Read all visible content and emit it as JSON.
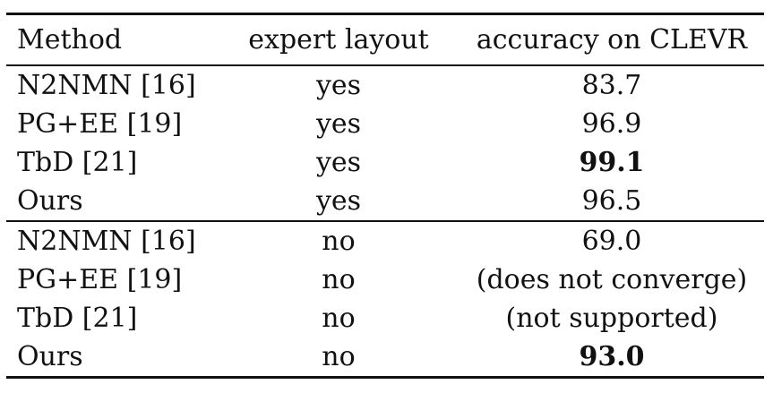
{
  "table": {
    "headers": {
      "method": "Method",
      "layout": "expert layout",
      "accuracy": "accuracy on CLEVR"
    },
    "groups": [
      {
        "rows": [
          {
            "method": "N2NMN [16]",
            "layout": "yes",
            "accuracy": "83.7",
            "bold": false
          },
          {
            "method": "PG+EE [19]",
            "layout": "yes",
            "accuracy": "96.9",
            "bold": false
          },
          {
            "method": "TbD [21]",
            "layout": "yes",
            "accuracy": "99.1",
            "bold": true
          },
          {
            "method": "Ours",
            "layout": "yes",
            "accuracy": "96.5",
            "bold": false
          }
        ]
      },
      {
        "rows": [
          {
            "method": "N2NMN [16]",
            "layout": "no",
            "accuracy": "69.0",
            "bold": false
          },
          {
            "method": "PG+EE [19]",
            "layout": "no",
            "accuracy": "(does not converge)",
            "bold": false
          },
          {
            "method": "TbD [21]",
            "layout": "no",
            "accuracy": "(not supported)",
            "bold": false
          },
          {
            "method": "Ours",
            "layout": "no",
            "accuracy": "93.0",
            "bold": true
          }
        ]
      }
    ]
  }
}
